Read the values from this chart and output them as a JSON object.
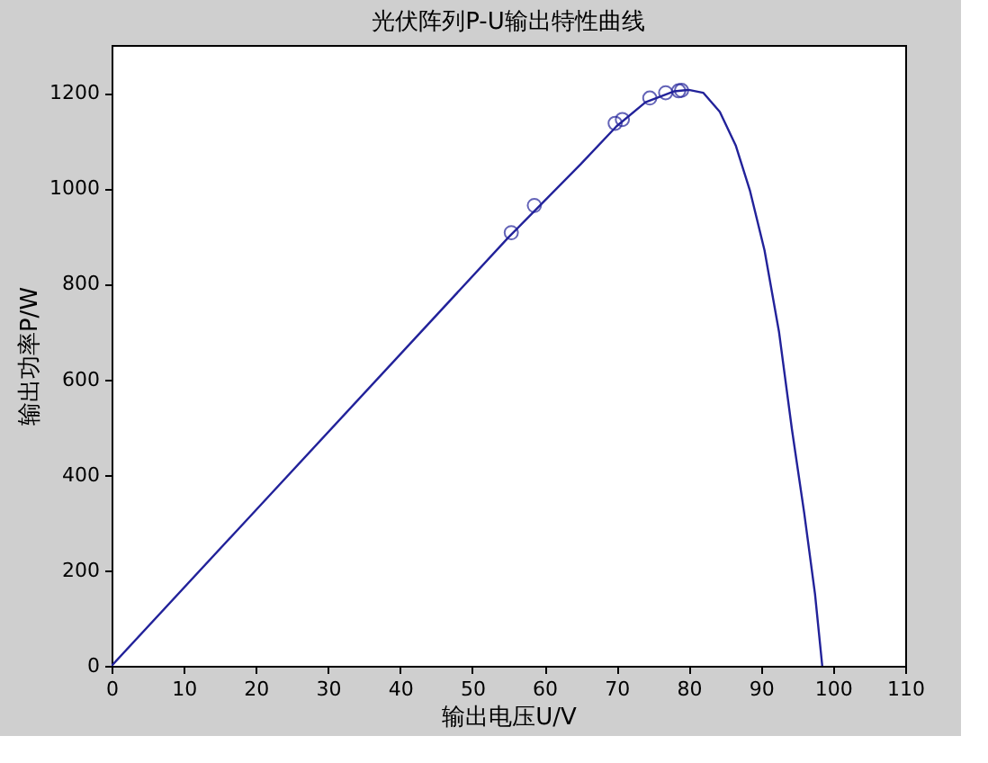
{
  "chart_data": {
    "type": "line",
    "title": "光伏阵列P-U输出特性曲线",
    "xlabel": "输出电压U/V",
    "ylabel": "输出功率P/W",
    "xlim": [
      0,
      110
    ],
    "xticks": [
      0,
      10,
      20,
      30,
      40,
      50,
      60,
      70,
      80,
      90,
      100,
      110
    ],
    "ylim": [
      0,
      1300
    ],
    "yticks": [
      0,
      200,
      400,
      600,
      800,
      1000,
      1200
    ],
    "grid": false,
    "series": [
      {
        "color": "#22229a",
        "marker": "none",
        "x": [
          0,
          20,
          40,
          55,
          65,
          70,
          74,
          78,
          80,
          82,
          84.3,
          86.5,
          88.5,
          90.5,
          92.5,
          94.3,
          96,
          97.5,
          98.5
        ],
        "values": [
          0,
          326,
          652,
          897,
          1050,
          1130,
          1180,
          1203,
          1206,
          1200,
          1160,
          1090,
          994,
          870,
          700,
          495,
          320,
          150,
          0
        ]
      },
      {
        "type": "scatter",
        "color": "#22229a",
        "marker": "circle",
        "x": [
          55.4,
          58.6,
          69.8,
          70.8,
          74.6,
          76.8,
          78.6,
          79
        ],
        "values": [
          907,
          964,
          1136,
          1144,
          1189,
          1200,
          1204,
          1205
        ]
      }
    ]
  }
}
